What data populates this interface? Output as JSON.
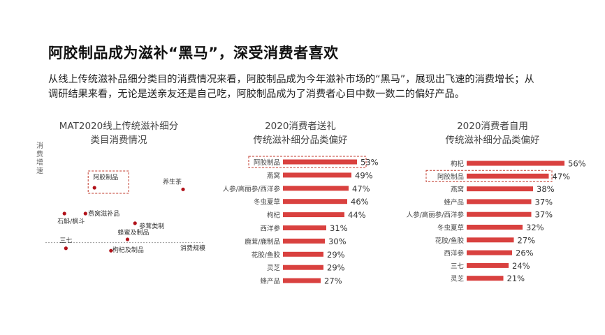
{
  "header": {
    "title": "阿胶制品成为滋补“黑马”，深受消费者喜欢",
    "desc_line1": "从线上传统滋补品细分类目的消费情况来看，阿胶制品成为今年滋补市场的“黑马”，展现出飞速的消费增长；从",
    "desc_line2": "调研结果来看，无论是送亲友还是自己吃，阿胶制品成为了消费者心目中数一数二的偏好产品。"
  },
  "chart_data": [
    {
      "type": "scatter",
      "title_line1": "MAT2020线上传统滋补细分",
      "title_line2": "类目消费情况",
      "xlabel": "消费规模",
      "ylabel": "消费增速",
      "highlight": "阿胶制品",
      "points": [
        {
          "name": "阿胶制品",
          "x": 0.28,
          "y": 0.68
        },
        {
          "name": "养生茶",
          "x": 0.87,
          "y": 0.66
        },
        {
          "name": "燕窝滋补品",
          "x": 0.22,
          "y": 0.36
        },
        {
          "name": "石斛/枫斗",
          "x": 0.08,
          "y": 0.36
        },
        {
          "name": "参茸类制",
          "x": 0.55,
          "y": 0.24
        },
        {
          "name": "蜂蜜及制品",
          "x": 0.5,
          "y": 0.04
        },
        {
          "name": "三七",
          "x": 0.09,
          "y": -0.07
        },
        {
          "name": "枸杞及制品",
          "x": 0.39,
          "y": -0.1
        }
      ],
      "xlim": [
        0,
        1
      ],
      "ylim": [
        -0.15,
        1
      ]
    },
    {
      "type": "bar",
      "title_line1": "2020消费者送礼",
      "title_line2": "传统滋补细分品类偏好",
      "highlight": "阿胶制品",
      "categories": [
        "阿胶制品",
        "燕窝",
        "人参/高丽参/西洋参",
        "冬虫夏草",
        "枸杞",
        "西洋参",
        "鹿茸/鹿制品",
        "花胶/鱼胶",
        "灵芝",
        "蜂产品"
      ],
      "values": [
        53,
        49,
        47,
        46,
        44,
        31,
        30,
        29,
        29,
        27
      ],
      "labels": [
        "53%",
        "49%",
        "47%",
        "46%",
        "44%",
        "31%",
        "30%",
        "29%",
        "29%",
        "27%"
      ],
      "color": "#d9413f"
    },
    {
      "type": "bar",
      "title_line1": "2020消费者自用",
      "title_line2": "传统滋补细分品类偏好",
      "highlight": "阿胶制品",
      "categories": [
        "枸杞",
        "阿胶制品",
        "燕窝",
        "蜂产品",
        "人参/高丽参/西洋参",
        "冬虫夏草",
        "花胶/鱼胶",
        "西洋参",
        "三七",
        "灵芝"
      ],
      "values": [
        56,
        47,
        38,
        37,
        37,
        32,
        27,
        26,
        24,
        21
      ],
      "labels": [
        "56%",
        "47%",
        "38%",
        "37%",
        "37%",
        "32%",
        "27%",
        "26%",
        "24%",
        "21%"
      ],
      "color": "#d9413f"
    }
  ]
}
